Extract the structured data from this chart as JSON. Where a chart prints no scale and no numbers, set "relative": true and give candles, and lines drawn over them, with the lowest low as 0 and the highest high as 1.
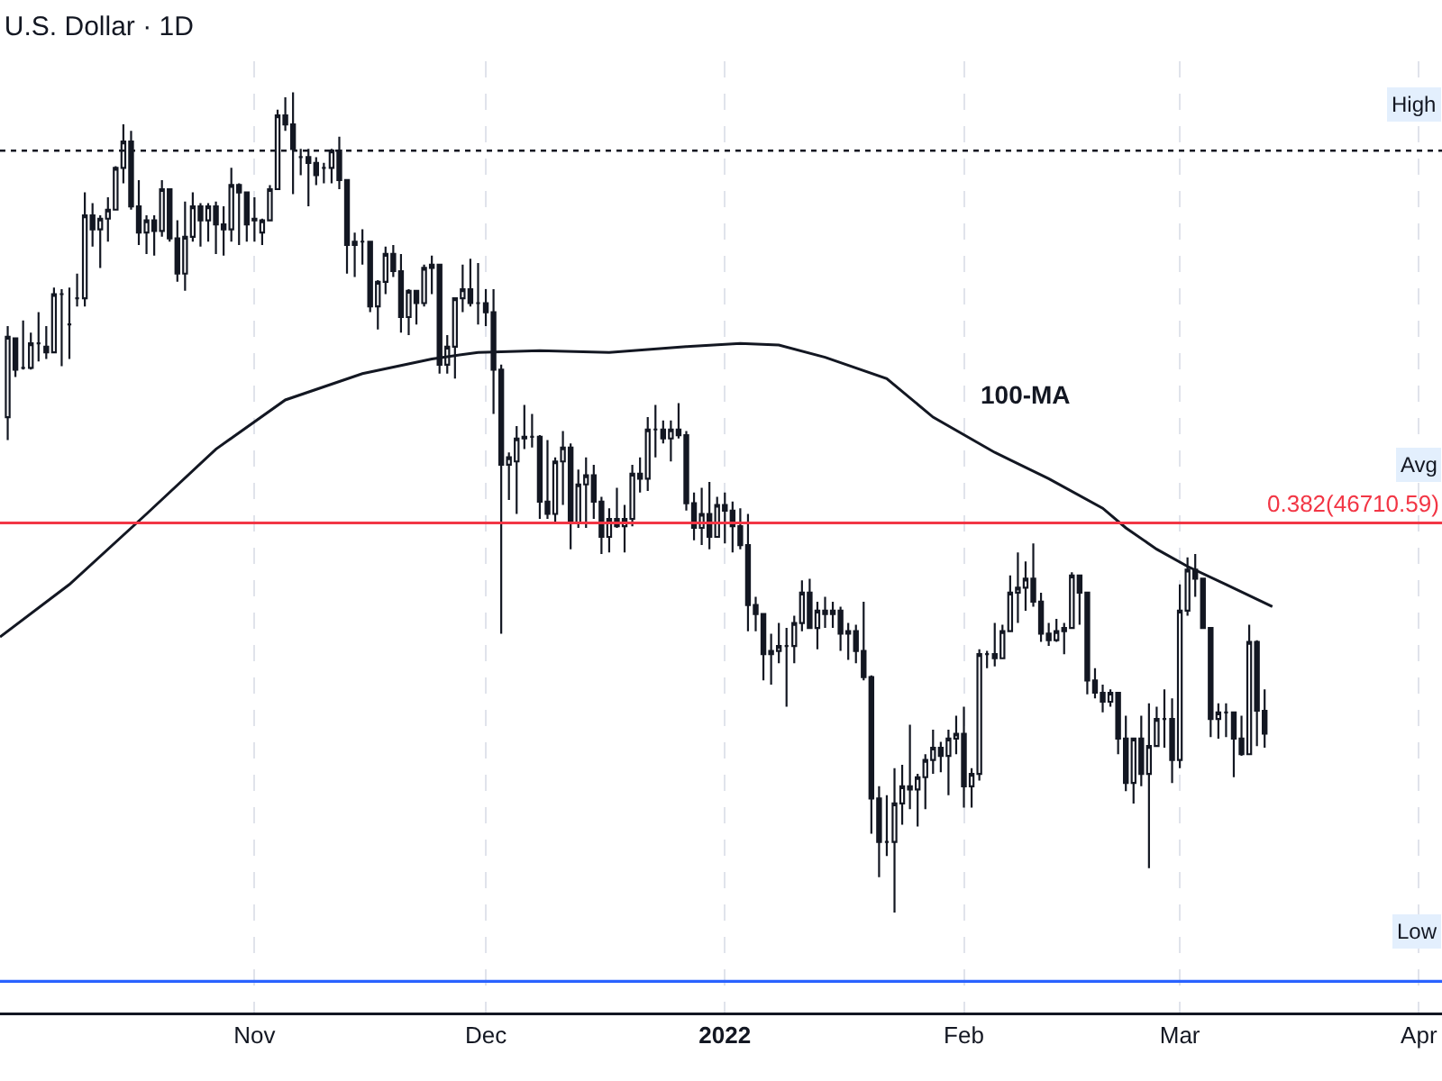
{
  "chart_data": {
    "type": "candlestick",
    "title": "U.S. Dollar · 1D",
    "relative": true,
    "color": "#131722",
    "grid": "x",
    "legend": false,
    "x": [
      "2021-09-30",
      "2021-10-01",
      "2021-10-02",
      "2021-10-03",
      "2021-10-04",
      "2021-10-05",
      "2021-10-06",
      "2021-10-07",
      "2021-10-08",
      "2021-10-09",
      "2021-10-10",
      "2021-10-11",
      "2021-10-12",
      "2021-10-13",
      "2021-10-14",
      "2021-10-15",
      "2021-10-16",
      "2021-10-17",
      "2021-10-18",
      "2021-10-19",
      "2021-10-20",
      "2021-10-21",
      "2021-10-22",
      "2021-10-23",
      "2021-10-24",
      "2021-10-25",
      "2021-10-26",
      "2021-10-27",
      "2021-10-28",
      "2021-10-29",
      "2021-10-30",
      "2021-10-31",
      "2021-11-01",
      "2021-11-02",
      "2021-11-03",
      "2021-11-04",
      "2021-11-05",
      "2021-11-06",
      "2021-11-07",
      "2021-11-08",
      "2021-11-09",
      "2021-11-10",
      "2021-11-11",
      "2021-11-12",
      "2021-11-13",
      "2021-11-14",
      "2021-11-15",
      "2021-11-16",
      "2021-11-17",
      "2021-11-18",
      "2021-11-19",
      "2021-11-20",
      "2021-11-21",
      "2021-11-22",
      "2021-11-23",
      "2021-11-24",
      "2021-11-25",
      "2021-11-26",
      "2021-11-27",
      "2021-11-28",
      "2021-11-29",
      "2021-11-30",
      "2021-12-01",
      "2021-12-02",
      "2021-12-03",
      "2021-12-04",
      "2021-12-05",
      "2021-12-06",
      "2021-12-07",
      "2021-12-08",
      "2021-12-09",
      "2021-12-10",
      "2021-12-11",
      "2021-12-12",
      "2021-12-13",
      "2021-12-14",
      "2021-12-15",
      "2021-12-16",
      "2021-12-17",
      "2021-12-18",
      "2021-12-19",
      "2021-12-20",
      "2021-12-21",
      "2021-12-22",
      "2021-12-23",
      "2021-12-24",
      "2021-12-25",
      "2021-12-26",
      "2021-12-27",
      "2021-12-28",
      "2021-12-29",
      "2021-12-30",
      "2021-12-31",
      "2022-01-01",
      "2022-01-02",
      "2022-01-03",
      "2022-01-04",
      "2022-01-05",
      "2022-01-06",
      "2022-01-07",
      "2022-01-08",
      "2022-01-09",
      "2022-01-10",
      "2022-01-11",
      "2022-01-12",
      "2022-01-13",
      "2022-01-14",
      "2022-01-15",
      "2022-01-16",
      "2022-01-17",
      "2022-01-18",
      "2022-01-19",
      "2022-01-20",
      "2022-01-21",
      "2022-01-22",
      "2022-01-23",
      "2022-01-24",
      "2022-01-25",
      "2022-01-26",
      "2022-01-27",
      "2022-01-28",
      "2022-01-29",
      "2022-01-30",
      "2022-01-31",
      "2022-02-01",
      "2022-02-02",
      "2022-02-03",
      "2022-02-04",
      "2022-02-05",
      "2022-02-06",
      "2022-02-07",
      "2022-02-08",
      "2022-02-09",
      "2022-02-10",
      "2022-02-11",
      "2022-02-12",
      "2022-02-13",
      "2022-02-14",
      "2022-02-15",
      "2022-02-16",
      "2022-02-17",
      "2022-02-18",
      "2022-02-19",
      "2022-02-20",
      "2022-02-21",
      "2022-02-22",
      "2022-02-23",
      "2022-02-24",
      "2022-02-25",
      "2022-02-26",
      "2022-02-27",
      "2022-02-28",
      "2022-03-01",
      "2022-03-02",
      "2022-03-03",
      "2022-03-04",
      "2022-03-05",
      "2022-03-06",
      "2022-03-07",
      "2022-03-08",
      "2022-03-09",
      "2022-03-10",
      "2022-03-11",
      "2022-03-12"
    ],
    "ohlc": [
      [
        0.604,
        0.715,
        0.576,
        0.702
      ],
      [
        0.7,
        0.7,
        0.653,
        0.662
      ],
      [
        0.664,
        0.722,
        0.662,
        0.664
      ],
      [
        0.664,
        0.707,
        0.662,
        0.694
      ],
      [
        0.694,
        0.732,
        0.672,
        0.694
      ],
      [
        0.69,
        0.715,
        0.675,
        0.683
      ],
      [
        0.683,
        0.762,
        0.683,
        0.754
      ],
      [
        0.754,
        0.76,
        0.666,
        0.754
      ],
      [
        0.717,
        0.762,
        0.675,
        0.717
      ],
      [
        0.749,
        0.779,
        0.739,
        0.749
      ],
      [
        0.749,
        0.878,
        0.739,
        0.85
      ],
      [
        0.85,
        0.865,
        0.812,
        0.833
      ],
      [
        0.833,
        0.85,
        0.786,
        0.846
      ],
      [
        0.846,
        0.872,
        0.818,
        0.857
      ],
      [
        0.857,
        0.91,
        0.857,
        0.908
      ],
      [
        0.908,
        0.961,
        0.889,
        0.94
      ],
      [
        0.94,
        0.953,
        0.857,
        0.861
      ],
      [
        0.861,
        0.893,
        0.814,
        0.829
      ],
      [
        0.829,
        0.85,
        0.803,
        0.844
      ],
      [
        0.844,
        0.85,
        0.801,
        0.831
      ],
      [
        0.831,
        0.893,
        0.824,
        0.882
      ],
      [
        0.882,
        0.882,
        0.818,
        0.822
      ],
      [
        0.822,
        0.844,
        0.769,
        0.779
      ],
      [
        0.779,
        0.867,
        0.758,
        0.824
      ],
      [
        0.824,
        0.878,
        0.818,
        0.861
      ],
      [
        0.861,
        0.865,
        0.812,
        0.844
      ],
      [
        0.844,
        0.865,
        0.818,
        0.861
      ],
      [
        0.861,
        0.867,
        0.803,
        0.839
      ],
      [
        0.839,
        0.861,
        0.801,
        0.833
      ],
      [
        0.833,
        0.908,
        0.818,
        0.887
      ],
      [
        0.887,
        0.889,
        0.814,
        0.878
      ],
      [
        0.878,
        0.878,
        0.818,
        0.839
      ],
      [
        0.846,
        0.872,
        0.818,
        0.844
      ],
      [
        0.829,
        0.846,
        0.814,
        0.844
      ],
      [
        0.844,
        0.887,
        0.844,
        0.882
      ],
      [
        0.882,
        0.979,
        0.882,
        0.972
      ],
      [
        0.972,
        0.994,
        0.953,
        0.961
      ],
      [
        0.961,
        1.0,
        0.876,
        0.931
      ],
      [
        0.921,
        0.931,
        0.899,
        0.921
      ],
      [
        0.921,
        0.931,
        0.861,
        0.914
      ],
      [
        0.914,
        0.921,
        0.887,
        0.899
      ],
      [
        0.908,
        0.914,
        0.889,
        0.908
      ],
      [
        0.908,
        0.931,
        0.889,
        0.929
      ],
      [
        0.929,
        0.946,
        0.882,
        0.893
      ],
      [
        0.893,
        0.893,
        0.779,
        0.814
      ],
      [
        0.814,
        0.829,
        0.775,
        0.818
      ],
      [
        0.818,
        0.833,
        0.79,
        0.818
      ],
      [
        0.818,
        0.818,
        0.732,
        0.739
      ],
      [
        0.739,
        0.771,
        0.711,
        0.769
      ],
      [
        0.769,
        0.812,
        0.754,
        0.803
      ],
      [
        0.803,
        0.814,
        0.775,
        0.782
      ],
      [
        0.782,
        0.803,
        0.707,
        0.726
      ],
      [
        0.726,
        0.76,
        0.704,
        0.758
      ],
      [
        0.758,
        0.758,
        0.717,
        0.743
      ],
      [
        0.743,
        0.79,
        0.739,
        0.786
      ],
      [
        0.786,
        0.801,
        0.754,
        0.79
      ],
      [
        0.79,
        0.79,
        0.657,
        0.668
      ],
      [
        0.668,
        0.704,
        0.657,
        0.69
      ],
      [
        0.69,
        0.749,
        0.651,
        0.749
      ],
      [
        0.749,
        0.79,
        0.732,
        0.76
      ],
      [
        0.76,
        0.797,
        0.739,
        0.743
      ],
      [
        0.743,
        0.792,
        0.717,
        0.743
      ],
      [
        0.743,
        0.76,
        0.715,
        0.732
      ],
      [
        0.732,
        0.76,
        0.608,
        0.662
      ],
      [
        0.662,
        0.668,
        0.34,
        0.546
      ],
      [
        0.546,
        0.561,
        0.503,
        0.555
      ],
      [
        0.55,
        0.593,
        0.486,
        0.578
      ],
      [
        0.578,
        0.619,
        0.565,
        0.58
      ],
      [
        0.58,
        0.608,
        0.567,
        0.58
      ],
      [
        0.58,
        0.582,
        0.48,
        0.501
      ],
      [
        0.501,
        0.576,
        0.48,
        0.486
      ],
      [
        0.486,
        0.555,
        0.475,
        0.55
      ],
      [
        0.55,
        0.587,
        0.497,
        0.567
      ],
      [
        0.567,
        0.572,
        0.443,
        0.475
      ],
      [
        0.475,
        0.54,
        0.469,
        0.522
      ],
      [
        0.522,
        0.555,
        0.469,
        0.533
      ],
      [
        0.533,
        0.546,
        0.48,
        0.501
      ],
      [
        0.501,
        0.507,
        0.437,
        0.458
      ],
      [
        0.458,
        0.493,
        0.439,
        0.48
      ],
      [
        0.48,
        0.518,
        0.469,
        0.471
      ],
      [
        0.471,
        0.497,
        0.439,
        0.48
      ],
      [
        0.48,
        0.546,
        0.471,
        0.535
      ],
      [
        0.535,
        0.555,
        0.512,
        0.529
      ],
      [
        0.529,
        0.604,
        0.514,
        0.589
      ],
      [
        0.589,
        0.619,
        0.555,
        0.589
      ],
      [
        0.589,
        0.6,
        0.572,
        0.578
      ],
      [
        0.578,
        0.6,
        0.55,
        0.589
      ],
      [
        0.589,
        0.621,
        0.578,
        0.582
      ],
      [
        0.582,
        0.587,
        0.49,
        0.499
      ],
      [
        0.499,
        0.512,
        0.454,
        0.469
      ],
      [
        0.469,
        0.518,
        0.448,
        0.486
      ],
      [
        0.486,
        0.525,
        0.443,
        0.458
      ],
      [
        0.458,
        0.507,
        0.458,
        0.497
      ],
      [
        0.497,
        0.512,
        0.45,
        0.49
      ],
      [
        0.49,
        0.501,
        0.439,
        0.471
      ],
      [
        0.471,
        0.493,
        0.443,
        0.448
      ],
      [
        0.448,
        0.486,
        0.343,
        0.375
      ],
      [
        0.375,
        0.385,
        0.343,
        0.364
      ],
      [
        0.364,
        0.364,
        0.283,
        0.315
      ],
      [
        0.315,
        0.34,
        0.278,
        0.319
      ],
      [
        0.319,
        0.353,
        0.304,
        0.325
      ],
      [
        0.325,
        0.347,
        0.251,
        0.325
      ],
      [
        0.325,
        0.362,
        0.304,
        0.353
      ],
      [
        0.353,
        0.405,
        0.343,
        0.39
      ],
      [
        0.39,
        0.407,
        0.347,
        0.347
      ],
      [
        0.347,
        0.379,
        0.321,
        0.368
      ],
      [
        0.368,
        0.385,
        0.347,
        0.364
      ],
      [
        0.364,
        0.379,
        0.347,
        0.368
      ],
      [
        0.368,
        0.373,
        0.319,
        0.34
      ],
      [
        0.34,
        0.353,
        0.308,
        0.343
      ],
      [
        0.343,
        0.351,
        0.304,
        0.319
      ],
      [
        0.319,
        0.379,
        0.283,
        0.287
      ],
      [
        0.287,
        0.289,
        0.096,
        0.139
      ],
      [
        0.139,
        0.154,
        0.043,
        0.086
      ],
      [
        0.086,
        0.143,
        0.069,
        0.086
      ],
      [
        0.086,
        0.176,
        0,
        0.133
      ],
      [
        0.133,
        0.18,
        0.107,
        0.154
      ],
      [
        0.154,
        0.229,
        0.126,
        0.15
      ],
      [
        0.15,
        0.169,
        0.105,
        0.165
      ],
      [
        0.165,
        0.193,
        0.126,
        0.186
      ],
      [
        0.186,
        0.223,
        0.169,
        0.201
      ],
      [
        0.201,
        0.208,
        0.171,
        0.191
      ],
      [
        0.191,
        0.223,
        0.143,
        0.212
      ],
      [
        0.212,
        0.24,
        0.193,
        0.218
      ],
      [
        0.218,
        0.251,
        0.128,
        0.154
      ],
      [
        0.154,
        0.176,
        0.128,
        0.169
      ],
      [
        0.169,
        0.321,
        0.161,
        0.315
      ],
      [
        0.315,
        0.319,
        0.298,
        0.315
      ],
      [
        0.315,
        0.353,
        0.3,
        0.31
      ],
      [
        0.31,
        0.351,
        0.31,
        0.343
      ],
      [
        0.343,
        0.411,
        0.343,
        0.39
      ],
      [
        0.39,
        0.439,
        0.353,
        0.396
      ],
      [
        0.396,
        0.428,
        0.368,
        0.407
      ],
      [
        0.407,
        0.45,
        0.373,
        0.379
      ],
      [
        0.379,
        0.39,
        0.33,
        0.34
      ],
      [
        0.34,
        0.353,
        0.325,
        0.332
      ],
      [
        0.332,
        0.358,
        0.33,
        0.343
      ],
      [
        0.343,
        0.353,
        0.315,
        0.347
      ],
      [
        0.347,
        0.415,
        0.347,
        0.411
      ],
      [
        0.411,
        0.411,
        0.351,
        0.39
      ],
      [
        0.39,
        0.39,
        0.266,
        0.283
      ],
      [
        0.283,
        0.298,
        0.261,
        0.268
      ],
      [
        0.268,
        0.278,
        0.244,
        0.257
      ],
      [
        0.257,
        0.272,
        0.251,
        0.268
      ],
      [
        0.268,
        0.268,
        0.193,
        0.212
      ],
      [
        0.212,
        0.24,
        0.148,
        0.158
      ],
      [
        0.158,
        0.212,
        0.133,
        0.212
      ],
      [
        0.212,
        0.24,
        0.154,
        0.169
      ],
      [
        0.169,
        0.255,
        0.054,
        0.203
      ],
      [
        0.203,
        0.251,
        0.203,
        0.236
      ],
      [
        0.236,
        0.272,
        0.201,
        0.236
      ],
      [
        0.236,
        0.261,
        0.158,
        0.186
      ],
      [
        0.186,
        0.4,
        0.176,
        0.368
      ],
      [
        0.368,
        0.433,
        0.362,
        0.418
      ],
      [
        0.418,
        0.437,
        0.385,
        0.407
      ],
      [
        0.407,
        0.407,
        0.347,
        0.347
      ],
      [
        0.347,
        0.347,
        0.214,
        0.236
      ],
      [
        0.236,
        0.255,
        0.212,
        0.244
      ],
      [
        0.244,
        0.255,
        0.214,
        0.244
      ],
      [
        0.244,
        0.244,
        0.165,
        0.212
      ],
      [
        0.212,
        0.24,
        0.191,
        0.193
      ],
      [
        0.193,
        0.351,
        0.193,
        0.33
      ],
      [
        0.33,
        0.332,
        0.203,
        0.246
      ],
      [
        0.246,
        0.272,
        0.201,
        0.218
      ]
    ],
    "series": [
      {
        "type": "line",
        "name": "100-MA",
        "color": "#131722",
        "x": [
          "2021-09-29",
          "2021-10-08",
          "2021-10-18",
          "2021-10-27",
          "2021-11-05",
          "2021-11-15",
          "2021-11-24",
          "2021-11-30",
          "2021-12-08",
          "2021-12-17",
          "2021-12-27",
          "2022-01-03",
          "2022-01-08",
          "2022-01-14",
          "2022-01-22",
          "2022-01-28",
          "2022-02-05",
          "2022-02-12",
          "2022-02-19",
          "2022-02-22",
          "2022-02-26",
          "2022-03-02",
          "2022-03-07",
          "2022-03-13"
        ],
        "values": [
          0.336,
          0.4,
          0.486,
          0.565,
          0.625,
          0.657,
          0.675,
          0.683,
          0.685,
          0.683,
          0.69,
          0.694,
          0.692,
          0.677,
          0.651,
          0.604,
          0.561,
          0.529,
          0.493,
          0.469,
          0.443,
          0.422,
          0.4,
          0.373
        ]
      }
    ],
    "xlim": [
      "2021-09-29",
      "2022-04-04"
    ],
    "xticks": [
      {
        "value": "2021-11-01",
        "label": "Nov"
      },
      {
        "value": "2021-12-01",
        "label": "Dec"
      },
      {
        "value": "2022-01-01",
        "label": "2022"
      },
      {
        "value": "2022-02-01",
        "label": "Feb"
      },
      {
        "value": "2022-03-01",
        "label": "Mar"
      },
      {
        "value": "2022-04-01",
        "label": "Apr"
      }
    ],
    "ref_lines": [
      {
        "axis": "y",
        "value": 0.475,
        "color": "#f23645",
        "line_style": "solid"
      },
      {
        "axis": "y",
        "value": 0.929,
        "color": "#131722",
        "line_style": "dotted"
      },
      {
        "axis": "y",
        "value": -0.084,
        "color": "#2962ff",
        "line_style": "solid"
      }
    ],
    "annotations": [
      {
        "text": "0.382(46710.59)",
        "x": "2022-04-04",
        "y": 0.475
      },
      "High",
      "Avg",
      "Low"
    ]
  }
}
